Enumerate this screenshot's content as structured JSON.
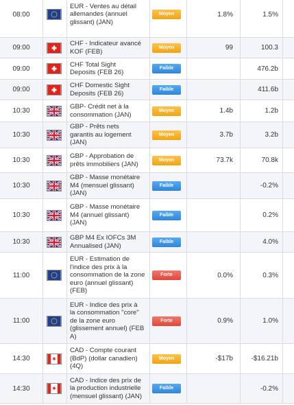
{
  "colors": {
    "moyen": "#f5ae24",
    "faible": "#3d93e3",
    "forte": "#e8574b",
    "row_alt": "#f3f5f8",
    "border": "#d9dde3"
  },
  "rows": [
    {
      "time": "08:00",
      "flag": "eu-flag-icon",
      "event": "EUR - Ventes au détail\nallemandes (annuel\nglissant) (JAN)",
      "importance": "Moyen",
      "level": "moyen",
      "actual": "1.8%",
      "forecast": "1.5%"
    },
    {
      "time": "09:00",
      "flag": "ch-flag-icon",
      "event": "CHF - Indicateur avancé\nKOF (FEB)",
      "importance": "Moyen",
      "level": "moyen",
      "actual": "99",
      "forecast": "100.3"
    },
    {
      "time": "09:00",
      "flag": "ch-flag-icon",
      "event": "CHF Total Sight\nDeposits (FEB 26)",
      "importance": "Faible",
      "level": "faible",
      "actual": "",
      "forecast": "476.2b"
    },
    {
      "time": "09:00",
      "flag": "ch-flag-icon",
      "event": "CHF Domestic Sight\nDeposits (FEB 26)",
      "importance": "Faible",
      "level": "faible",
      "actual": "",
      "forecast": "411.6b"
    },
    {
      "time": "10:30",
      "flag": "uk-flag-icon",
      "event": "GBP- Crédit net à la\nconsommation (JAN)",
      "importance": "Moyen",
      "level": "moyen",
      "actual": "1.4b",
      "forecast": "1.2b"
    },
    {
      "time": "10:30",
      "flag": "uk-flag-icon",
      "event": "GBP - Prêts nets\ngarantis au logement\n(JAN)",
      "importance": "Moyen",
      "level": "moyen",
      "actual": "3.7b",
      "forecast": "3.2b"
    },
    {
      "time": "10:30",
      "flag": "uk-flag-icon",
      "event": "GBP - Approbation de\nprêts immobiliers (JAN)",
      "importance": "Moyen",
      "level": "moyen",
      "actual": "73.7k",
      "forecast": "70.8k"
    },
    {
      "time": "10:30",
      "flag": "uk-flag-icon",
      "event": "GBP - Masse monétaire\nM4 (mensuel glissant)\n(JAN)",
      "importance": "Faible",
      "level": "faible",
      "actual": "",
      "forecast": "-0.2%"
    },
    {
      "time": "10:30",
      "flag": "uk-flag-icon",
      "event": "GBP - Masse monétaire\nM4 (annuel glissant)\n(JAN)",
      "importance": "Faible",
      "level": "faible",
      "actual": "",
      "forecast": "0.2%"
    },
    {
      "time": "10:30",
      "flag": "uk-flag-icon",
      "event": "GBP M4 Ex IOFCs 3M\nAnnualised (JAN)",
      "importance": "Faible",
      "level": "faible",
      "actual": "",
      "forecast": "4.0%"
    },
    {
      "time": "11:00",
      "flag": "eu-flag-icon",
      "event": "EUR - Estimation de\nl'indice des prix à la\nconsommation de la zone\neuro (annuel glissant)\n(FEB)",
      "importance": "Forte",
      "level": "forte",
      "actual": "0.0%",
      "forecast": "0.3%"
    },
    {
      "time": "11:00",
      "flag": "eu-flag-icon",
      "event": "EUR - Indice des prix à\nla consommation \"core\"\nde la zone euro\n(glissement annuel) (FEB\nA)",
      "importance": "Forte",
      "level": "forte",
      "actual": "0.9%",
      "forecast": "1.0%"
    },
    {
      "time": "14:30",
      "flag": "ca-flag-icon",
      "event": "CAD - Compte courant\n(BdP) (dollar canadien)\n(4Q)",
      "importance": "Moyen",
      "level": "moyen",
      "actual": "-$17b",
      "forecast": "-$16.21b"
    },
    {
      "time": "14:30",
      "flag": "ca-flag-icon",
      "event": "CAD - Indice des prix de\nla production industrielle\n(mensuel glissant) (JAN)",
      "importance": "Faible",
      "level": "faible",
      "actual": "",
      "forecast": "-0.2%"
    }
  ]
}
